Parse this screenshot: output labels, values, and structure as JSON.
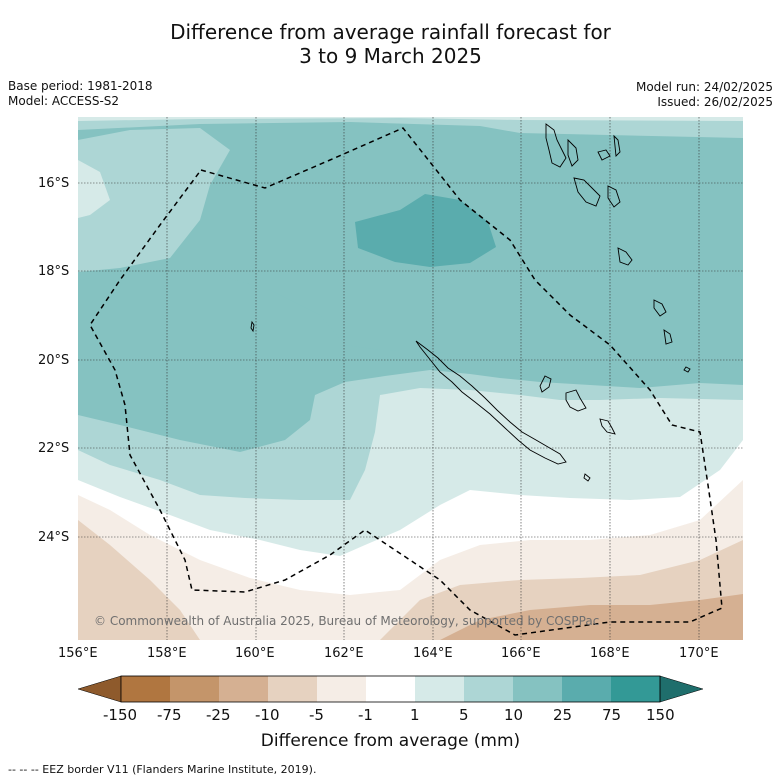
{
  "title": {
    "line1": "Difference from average rainfall forecast for",
    "line2": "3 to 9 March 2025"
  },
  "meta": {
    "base_period": "Base period: 1981-2018",
    "model": "Model: ACCESS-S2",
    "model_run": "Model run: 24/02/2025",
    "issued": "Issued: 26/02/2025"
  },
  "map": {
    "copyright": "© Commonwealth of Australia 2025, Bureau of Meteorology, supported by COSPPac",
    "lat_labels": [
      "16°S",
      "18°S",
      "20°S",
      "22°S",
      "24°S"
    ],
    "lon_labels": [
      "156°E",
      "158°E",
      "160°E",
      "162°E",
      "164°E",
      "166°E",
      "168°E",
      "170°E"
    ]
  },
  "colorbar": {
    "label": "Difference from average (mm)",
    "ticks": [
      "-150",
      "-75",
      "-25",
      "-10",
      "-5",
      "-1",
      "1",
      "5",
      "10",
      "25",
      "75",
      "150"
    ],
    "colors": {
      "lt_-150": "#8e5a2c",
      "-150_-75": "#b07640",
      "-75_-25": "#c4956a",
      "-25_-10": "#d5b092",
      "-10_-5": "#e6d2c0",
      "-5_-1": "#f5ede6",
      "-1_1": "#ffffff",
      "1_5": "#d6eae8",
      "5_10": "#add6d5",
      "10_25": "#85c2c1",
      "25_75": "#5aacad",
      "75_150": "#339996",
      "gt_150": "#1f6e6c"
    }
  },
  "footnote": "--  --  -- EEZ border V11 (Flanders Marine Institute, 2019)."
}
